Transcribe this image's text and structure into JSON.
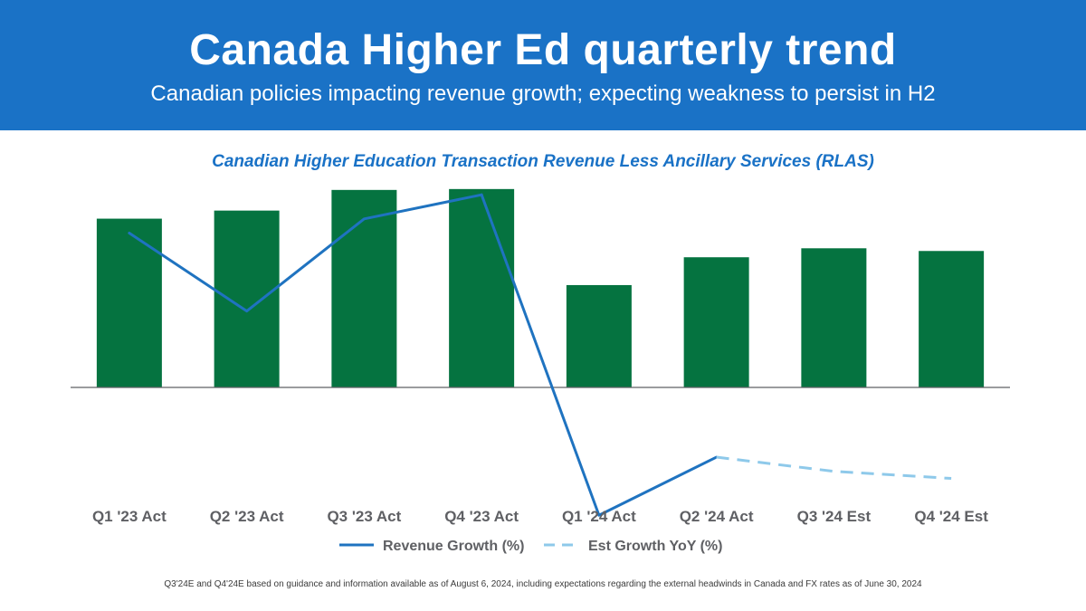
{
  "header": {
    "title": "Canada Higher Ed quarterly trend",
    "subtitle": "Canadian policies impacting revenue growth; expecting weakness to persist in H2"
  },
  "colors": {
    "header_bg": "#1a72c6",
    "bar": "#057340",
    "line": "#1f73c0",
    "est_line": "#8ec9ea",
    "axis": "#5f6064"
  },
  "chart_data": {
    "type": "bar",
    "title": "Canadian Higher Education Transaction Revenue Less Ancillary Services (RLAS)",
    "categories": [
      "Q1 '23 Act",
      "Q2 '23 Act",
      "Q3 '23 Act",
      "Q4 '23 Act",
      "Q1 '24 Act",
      "Q2 '24 Act",
      "Q3 '24 Est",
      "Q4 '24 Est"
    ],
    "bar_values": [
      188,
      197,
      220,
      221,
      114,
      145,
      155,
      152
    ],
    "bar_ylim": [
      0,
      240
    ],
    "series": [
      {
        "name": "Revenue Growth (%)",
        "type": "line",
        "style": "solid",
        "values": [
          7.5,
          2.0,
          8.5,
          10.2,
          null,
          null,
          null,
          null
        ]
      },
      {
        "name": "Revenue Growth (%)",
        "type": "line",
        "style": "solid",
        "values": [
          null,
          null,
          null,
          10.2,
          -12.4,
          -8.3,
          null,
          null
        ]
      },
      {
        "name": "Est Growth YoY (%)",
        "type": "line",
        "style": "dashed",
        "values": [
          null,
          null,
          null,
          null,
          null,
          -8.3,
          -9.3,
          -9.8
        ]
      }
    ],
    "line_ylim": [
      -15,
      15
    ],
    "legend": [
      "Revenue Growth (%)",
      "Est Growth YoY (%)"
    ],
    "legend_position": "bottom",
    "xlabel": "",
    "ylabel": "",
    "grid": false
  },
  "footnote": "Q3'24E and Q4'24E based on guidance and information available as of August 6, 2024, including expectations regarding the external headwinds in Canada and FX rates as of June 30, 2024"
}
